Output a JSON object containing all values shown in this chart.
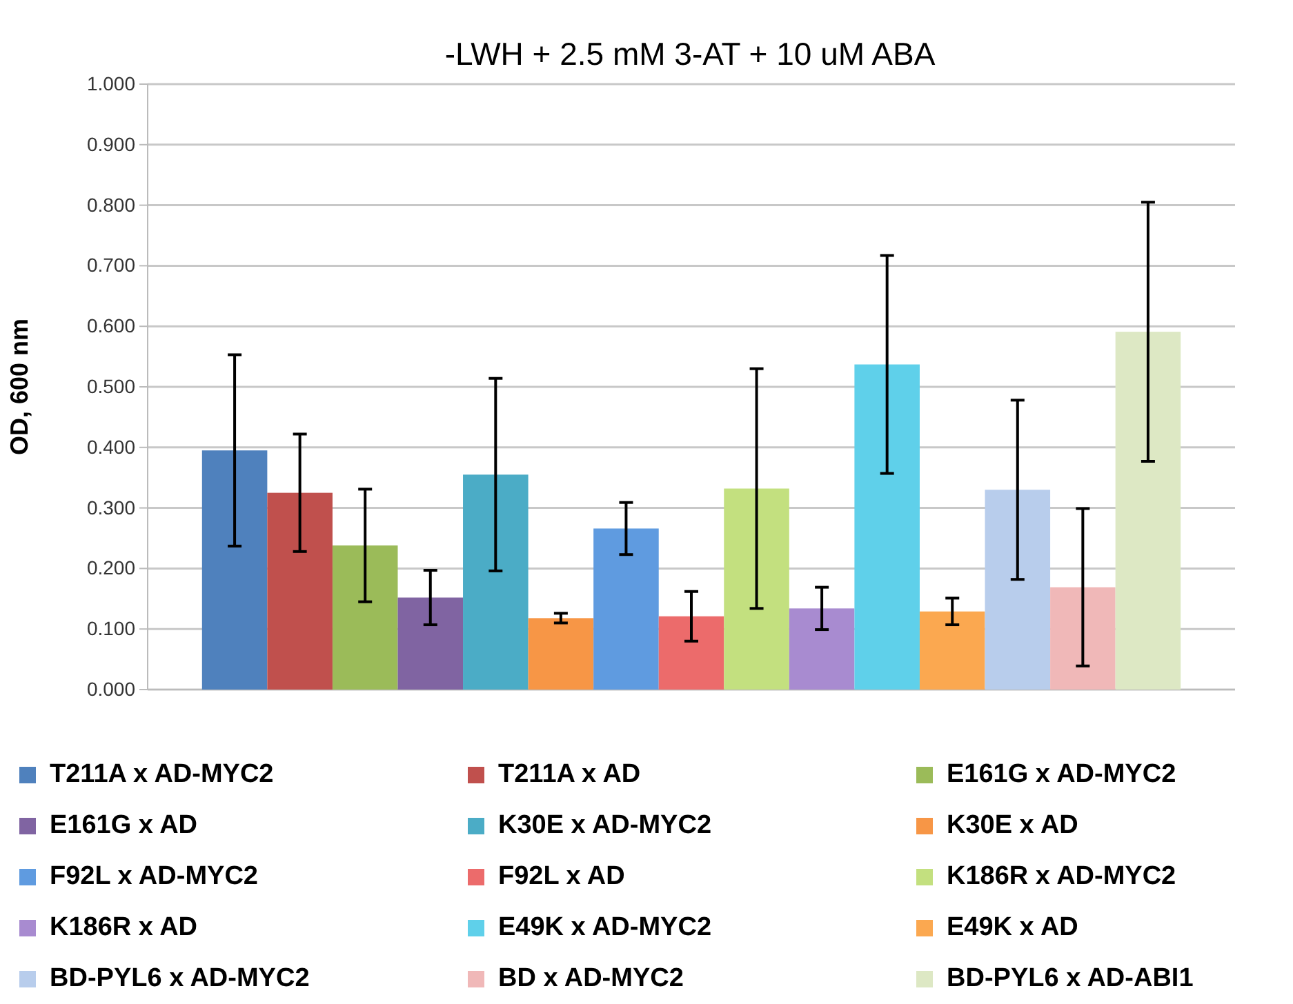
{
  "chart_data": {
    "type": "bar",
    "title": "-LWH + 2.5 mM 3-AT + 10 uM ABA",
    "ylabel": "OD, 600 nm",
    "categories": [
      null
    ],
    "ylim": [
      0,
      1
    ],
    "yticks": [
      {
        "value": 0,
        "label": "0.000"
      },
      {
        "value": 0.1,
        "label": "0.100"
      },
      {
        "value": 0.2,
        "label": "0.200"
      },
      {
        "value": 0.3,
        "label": "0.300"
      },
      {
        "value": 0.4,
        "label": "0.400"
      },
      {
        "value": 0.5,
        "label": "0.500"
      },
      {
        "value": 0.6,
        "label": "0.600"
      },
      {
        "value": 0.7,
        "label": "0.700"
      },
      {
        "value": 0.8,
        "label": "0.800"
      },
      {
        "value": 0.9,
        "label": "0.900"
      },
      {
        "value": 1,
        "label": "1.000"
      }
    ],
    "grid": "y",
    "legend": "bottom",
    "series": [
      {
        "name": "T211A x AD-MYC2",
        "color": "#4f81bd",
        "values": [
          0.395
        ],
        "errors": [
          0.158
        ]
      },
      {
        "name": "T211A x AD",
        "color": "#c0504d",
        "values": [
          0.325
        ],
        "errors": [
          0.097
        ]
      },
      {
        "name": "E161G x AD-MYC2",
        "color": "#9bbb59",
        "values": [
          0.238
        ],
        "errors": [
          0.093
        ]
      },
      {
        "name": "E161G x AD",
        "color": "#8064a2",
        "values": [
          0.152
        ],
        "errors": [
          0.045
        ]
      },
      {
        "name": "K30E x AD-MYC2",
        "color": "#4bacc6",
        "values": [
          0.355
        ],
        "errors": [
          0.159
        ]
      },
      {
        "name": "K30E x AD",
        "color": "#f79646",
        "values": [
          0.118
        ],
        "errors": [
          0.008
        ]
      },
      {
        "name": "F92L x AD-MYC2",
        "color": "#5f9be0",
        "values": [
          0.266
        ],
        "errors": [
          0.043
        ]
      },
      {
        "name": "F92L x AD",
        "color": "#ec6b6b",
        "values": [
          0.121
        ],
        "errors": [
          0.041
        ]
      },
      {
        "name": "K186R x AD-MYC2",
        "color": "#c3e07f",
        "values": [
          0.332
        ],
        "errors": [
          0.198
        ]
      },
      {
        "name": "K186R x AD",
        "color": "#a88bd0",
        "values": [
          0.134
        ],
        "errors": [
          0.035
        ]
      },
      {
        "name": "E49K x AD-MYC2",
        "color": "#5fd0ea",
        "values": [
          0.537
        ],
        "errors": [
          0.18
        ]
      },
      {
        "name": "E49K x AD",
        "color": "#fba850",
        "values": [
          0.129
        ],
        "errors": [
          0.022
        ]
      },
      {
        "name": "BD-PYL6 x AD-MYC2",
        "color": "#b8cdec",
        "values": [
          0.33
        ],
        "errors": [
          0.148
        ]
      },
      {
        "name": "BD x AD-MYC2",
        "color": "#f0b8b8",
        "values": [
          0.169
        ],
        "errors": [
          0.13
        ]
      },
      {
        "name": "BD-PYL6 x AD-ABI1",
        "color": "#dde8c4",
        "values": [
          0.591
        ],
        "errors": [
          0.214
        ]
      }
    ]
  }
}
